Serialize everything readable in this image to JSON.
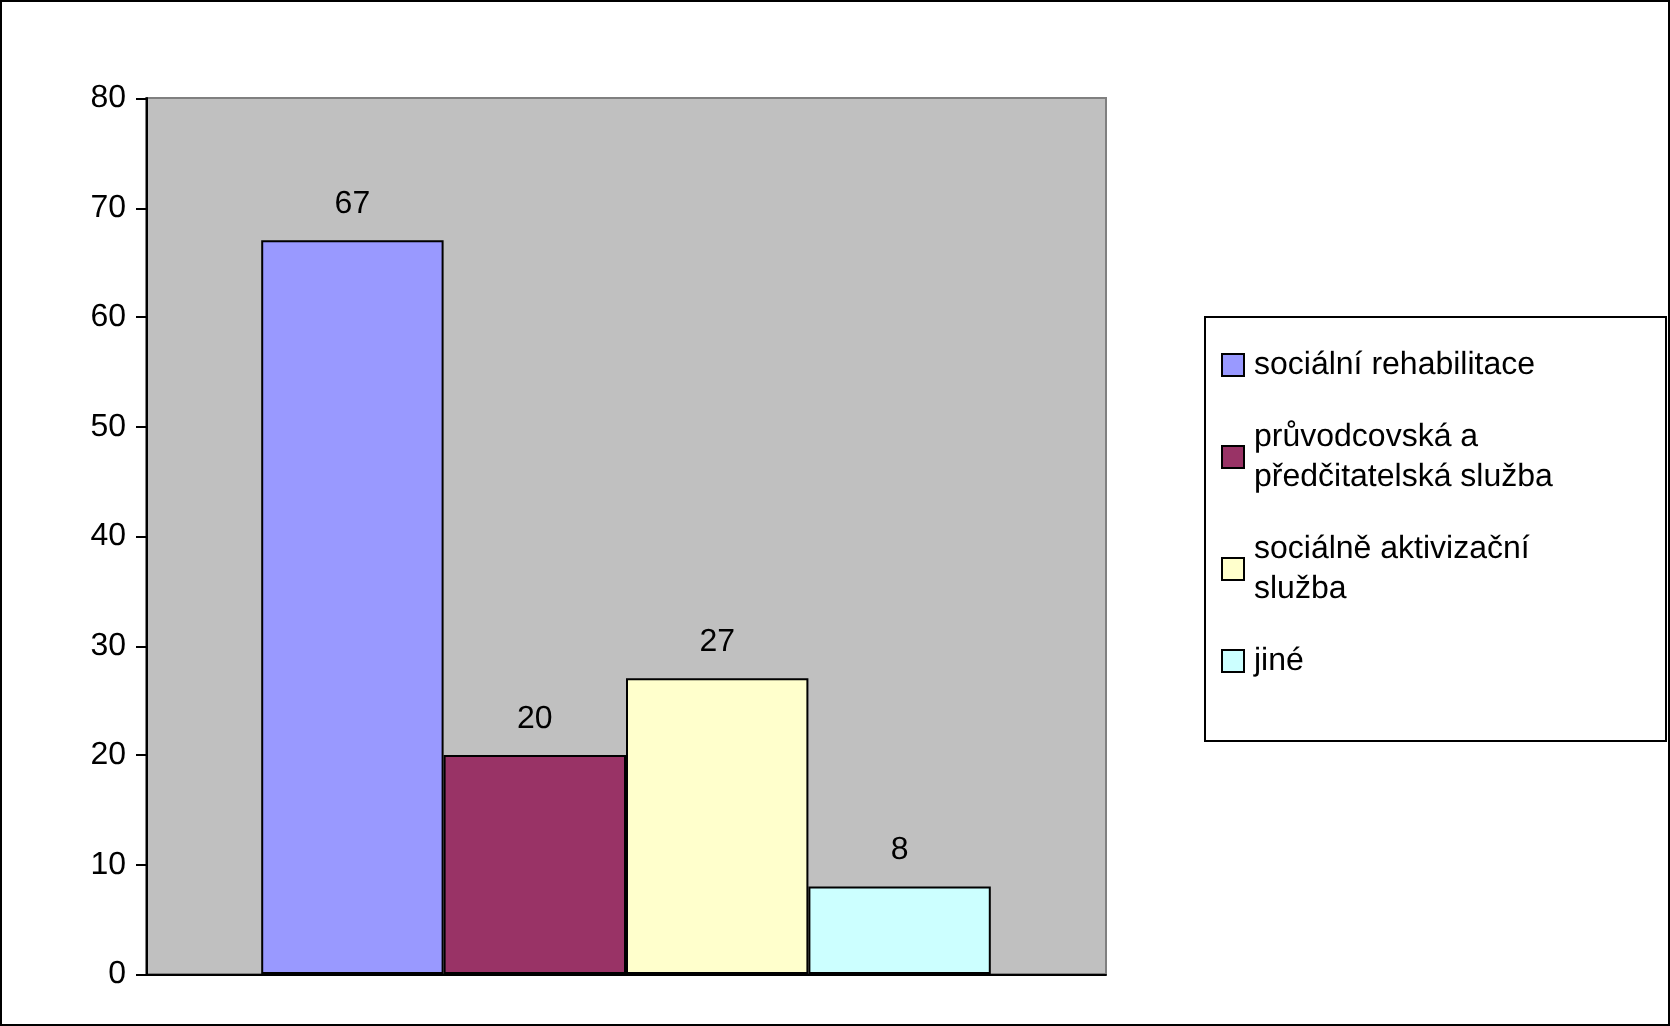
{
  "chart_data": {
    "type": "bar",
    "categories": [
      null
    ],
    "series": [
      {
        "name": "sociální rehabilitace",
        "color": "#9999ff",
        "values": [
          67
        ]
      },
      {
        "name": "průvodcovská a předčitatelská služba",
        "color": "#993366",
        "values": [
          20
        ]
      },
      {
        "name": "sociálně aktivizační služba",
        "color": "#ffffcc",
        "values": [
          27
        ]
      },
      {
        "name": "jiné",
        "color": "#ccffff",
        "values": [
          8
        ]
      }
    ],
    "ylim": [
      0,
      80
    ],
    "yticks": [
      0,
      10,
      20,
      30,
      40,
      50,
      60,
      70,
      80
    ],
    "data_labels": true,
    "grid": false,
    "legend": "right"
  }
}
